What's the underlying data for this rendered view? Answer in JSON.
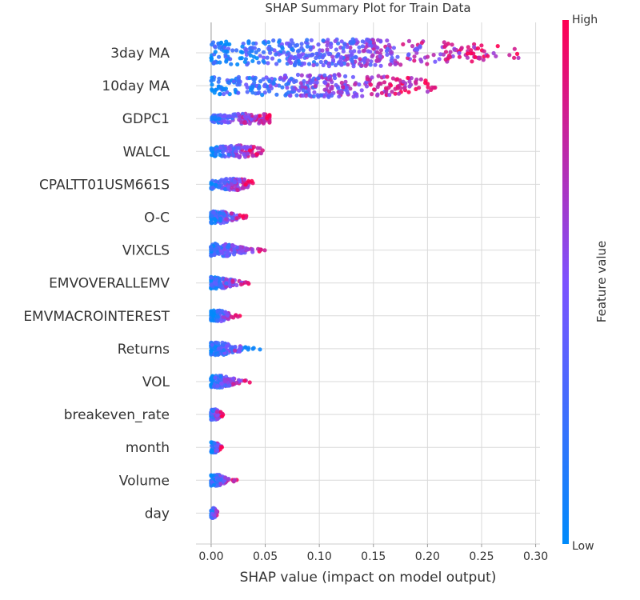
{
  "chart_data": {
    "type": "scatter",
    "title": "SHAP Summary Plot for Train Data",
    "xlabel": "SHAP value (impact on model output)",
    "ylabel": "",
    "xlim": [
      -0.014,
      0.304
    ],
    "xticks": [
      0.0,
      0.05,
      0.1,
      0.15,
      0.2,
      0.25,
      0.3
    ],
    "xtick_labels": [
      "0.00",
      "0.05",
      "0.10",
      "0.15",
      "0.20",
      "0.25",
      "0.30"
    ],
    "grid": true,
    "colorbar": {
      "label": "Feature value",
      "high_label": "High",
      "low_label": "Low",
      "low_color": "#008bfb",
      "mid_color": "#7c52ff",
      "high_color": "#ff0052"
    },
    "features": [
      {
        "name": "3day MA",
        "min": 0.0,
        "max": 0.29,
        "peak": 0.16,
        "width": 0.09
      },
      {
        "name": "10day MA",
        "min": 0.0,
        "max": 0.212,
        "peak": 0.13,
        "width": 0.06
      },
      {
        "name": "GDPC1",
        "min": 0.0,
        "max": 0.054,
        "peak": 0.045,
        "width": 0.015
      },
      {
        "name": "WALCL",
        "min": 0.0,
        "max": 0.048,
        "peak": 0.03,
        "width": 0.013
      },
      {
        "name": "CPALTT01USM661S",
        "min": 0.0,
        "max": 0.04,
        "peak": 0.025,
        "width": 0.012
      },
      {
        "name": "O-C",
        "min": 0.0,
        "max": 0.036,
        "peak": 0.005,
        "width": 0.009
      },
      {
        "name": "VIXCLS",
        "min": 0.0,
        "max": 0.05,
        "peak": 0.004,
        "width": 0.012
      },
      {
        "name": "EMVOVERALLEMV",
        "min": 0.0,
        "max": 0.035,
        "peak": 0.004,
        "width": 0.009
      },
      {
        "name": "EMVMACROINTEREST",
        "min": 0.0,
        "max": 0.027,
        "peak": 0.004,
        "width": 0.007
      },
      {
        "name": "Returns",
        "min": 0.0,
        "max": 0.046,
        "peak": 0.004,
        "width": 0.01
      },
      {
        "name": "VOL",
        "min": 0.0,
        "max": 0.036,
        "peak": 0.004,
        "width": 0.009
      },
      {
        "name": "breakeven_rate",
        "min": 0.0,
        "max": 0.011,
        "peak": 0.003,
        "width": 0.004
      },
      {
        "name": "month",
        "min": 0.0,
        "max": 0.01,
        "peak": 0.003,
        "width": 0.003
      },
      {
        "name": "Volume",
        "min": 0.0,
        "max": 0.024,
        "peak": 0.003,
        "width": 0.005
      },
      {
        "name": "day",
        "min": 0.0,
        "max": 0.006,
        "peak": 0.002,
        "width": 0.002
      }
    ]
  }
}
